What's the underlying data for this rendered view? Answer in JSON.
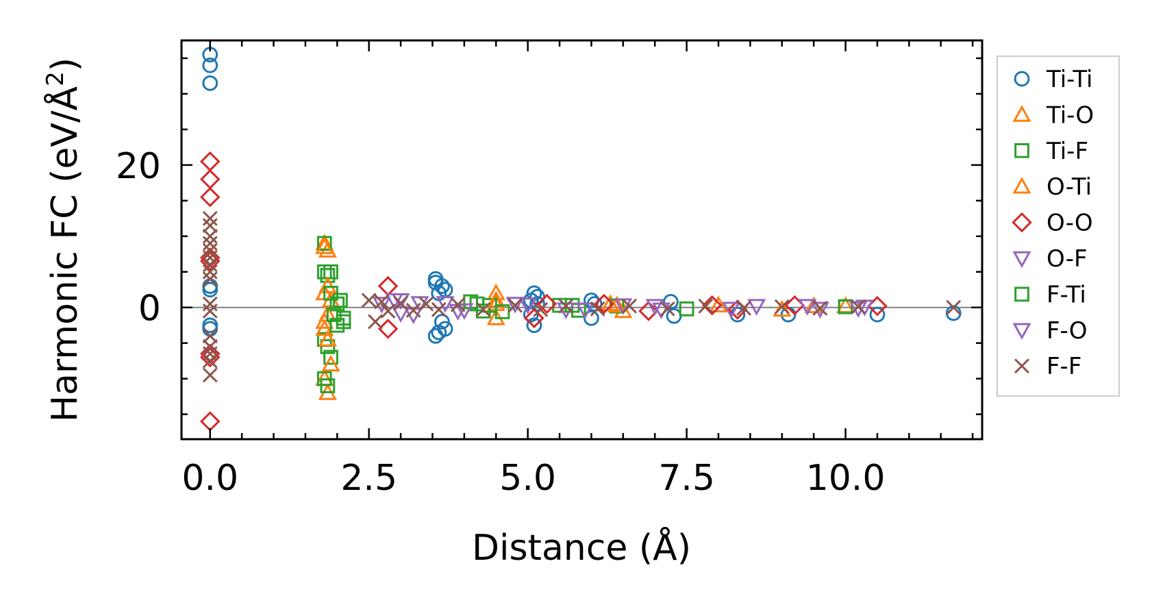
{
  "chart_data": {
    "type": "scatter",
    "title": "",
    "xlabel": "Distance (Å)",
    "ylabel_main": "Harmonic FC (eV/Å",
    "ylabel_sup": "2",
    "ylabel_close": ")",
    "xlim": [
      -0.45,
      12.15
    ],
    "ylim": [
      -18.5,
      37.5
    ],
    "xticks": [
      {
        "value": 0.0,
        "label": "0.0"
      },
      {
        "value": 2.5,
        "label": "2.5"
      },
      {
        "value": 5.0,
        "label": "5.0"
      },
      {
        "value": 7.5,
        "label": "7.5"
      },
      {
        "value": 10.0,
        "label": "10.0"
      }
    ],
    "yticks": [
      {
        "value": 0,
        "label": "0"
      },
      {
        "value": 20,
        "label": "20"
      }
    ],
    "x_minor_step": 0.5,
    "y_minor_step": 5,
    "zero_line": true,
    "legend_position": "outside-right",
    "series": [
      {
        "name": "Ti-Ti",
        "marker": "circle",
        "color": "#1f77b4",
        "x": [
          0,
          0,
          0,
          0,
          0,
          0,
          0,
          3.55,
          3.55,
          3.55,
          3.6,
          3.6,
          3.65,
          3.65,
          3.7,
          3.7,
          5.05,
          5.05,
          5.1,
          5.1,
          5.15,
          5.15,
          6.0,
          6.0,
          6.05,
          7.25,
          7.3,
          8.3,
          9.1,
          10.5,
          11.7
        ],
        "y": [
          35.5,
          34,
          31.5,
          3,
          2.5,
          -2.5,
          -3,
          4,
          3.5,
          -4,
          -3.5,
          2,
          -2,
          3,
          2.5,
          -3,
          1,
          -1,
          2,
          -2.5,
          1.5,
          0.5,
          1,
          -1.5,
          0.5,
          0.8,
          -1.2,
          -1,
          -1,
          -1,
          -0.8
        ]
      },
      {
        "name": "Ti-O",
        "marker": "triangle-up",
        "color": "#ff7f0e",
        "x": [
          1.8,
          1.8,
          1.8,
          1.8,
          1.85,
          1.85,
          1.85,
          1.9,
          4.5,
          4.5,
          4.5,
          6.3,
          6.5,
          8.0,
          9.0,
          10.0
        ],
        "y": [
          9,
          2,
          -2,
          -10,
          -12,
          8,
          -1,
          1,
          2,
          -1.5,
          0.5,
          0.5,
          -0.5,
          0.3,
          -0.3,
          0.2
        ]
      },
      {
        "name": "Ti-F",
        "marker": "square",
        "color": "#2ca02c",
        "x": [
          1.8,
          1.8,
          1.8,
          1.8,
          1.85,
          1.85,
          1.85,
          1.9,
          1.9,
          1.95,
          2.0,
          2.05,
          2.1,
          2.1,
          4.2,
          4.3,
          4.4,
          5.5,
          5.8,
          6.4,
          7.5,
          10.0
        ],
        "y": [
          9,
          5,
          -4.5,
          -10,
          -11,
          4.5,
          -5.5,
          5,
          -7,
          -1,
          0.5,
          1,
          -1.5,
          -2,
          0.5,
          -0.5,
          0.3,
          0.3,
          -0.4,
          0.2,
          -0.2,
          0.1
        ]
      },
      {
        "name": "O-Ti",
        "marker": "triangle-up",
        "color": "#ff7f0e",
        "x": [
          1.8,
          1.8,
          1.85,
          1.85,
          1.9,
          4.5,
          6.4,
          9.5
        ],
        "y": [
          8.5,
          -3,
          3,
          -4.5,
          -8,
          1,
          0.3,
          0.2
        ]
      },
      {
        "name": "O-O",
        "marker": "diamond",
        "color": "#d62728",
        "x": [
          0,
          0,
          0,
          0,
          0,
          0,
          0,
          0,
          2.8,
          2.8,
          5.1,
          5.3,
          6.2,
          6.9,
          7.9,
          8.3,
          9.2,
          10.5
        ],
        "y": [
          20.5,
          18,
          15.5,
          7,
          6.5,
          -6.5,
          -7,
          -16,
          3,
          -3,
          -1.5,
          0.5,
          0.5,
          -0.5,
          0.3,
          -0.3,
          0.3,
          0.2
        ]
      },
      {
        "name": "O-F",
        "marker": "triangle-down",
        "color": "#9467bd",
        "x": [
          2.9,
          3.0,
          3.3,
          3.9,
          4.8,
          5.6,
          6.5,
          7.1,
          8.6,
          9.6,
          10.3
        ],
        "y": [
          1,
          -0.8,
          0.6,
          -0.5,
          0.5,
          -0.3,
          0.3,
          -0.3,
          0.2,
          -0.2,
          0.1
        ]
      },
      {
        "name": "F-Ti",
        "marker": "square",
        "color": "#2ca02c",
        "x": [
          1.9,
          2.0,
          4.1,
          4.6,
          5.7,
          10.0
        ],
        "y": [
          2,
          -2.5,
          0.8,
          -0.6,
          0.3,
          0.1
        ]
      },
      {
        "name": "F-O",
        "marker": "triangle-down",
        "color": "#9467bd",
        "x": [
          2.7,
          3.0,
          3.2,
          3.7,
          4.0,
          5.0,
          5.9,
          7.0,
          8.2,
          9.4,
          10.2
        ],
        "y": [
          0.5,
          1,
          -1,
          0.6,
          -0.4,
          0.4,
          -0.3,
          0.2,
          -0.2,
          0.2,
          -0.1
        ]
      },
      {
        "name": "F-F",
        "marker": "x",
        "color": "#8c564b",
        "x": [
          0,
          0,
          0,
          0,
          0,
          0,
          0,
          0,
          0,
          0,
          0,
          0,
          0,
          0,
          0,
          0,
          2.5,
          2.6,
          2.7,
          2.8,
          3.0,
          3.2,
          3.4,
          3.6,
          3.9,
          4.3,
          4.8,
          5.2,
          5.6,
          6.1,
          6.6,
          7.2,
          7.8,
          8.4,
          9.0,
          9.6,
          10.2,
          11.7
        ],
        "y": [
          12.5,
          11.5,
          10,
          9,
          8,
          7,
          6,
          5,
          4,
          0.5,
          -0.5,
          -4,
          -5.5,
          -6.5,
          -7.5,
          -9.5,
          1,
          -2,
          0.8,
          -0.5,
          0.6,
          -0.4,
          0.5,
          -0.3,
          0.4,
          -0.3,
          0.3,
          -0.3,
          0.2,
          -0.2,
          0.2,
          -0.2,
          0.2,
          -0.1,
          0.1,
          -0.1,
          0.1,
          0
        ]
      }
    ]
  }
}
